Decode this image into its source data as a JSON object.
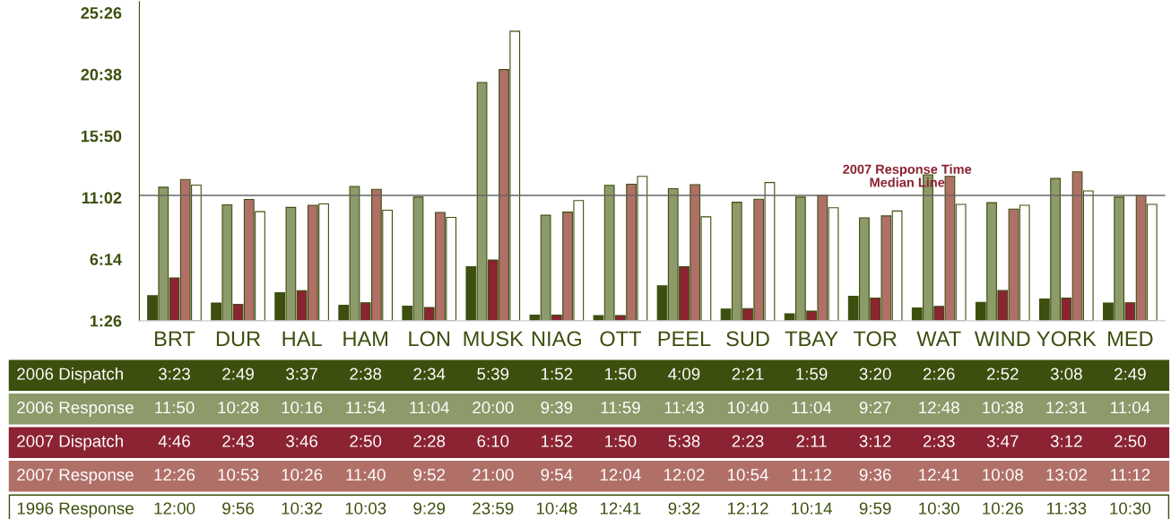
{
  "chart_data": {
    "type": "bar",
    "categories": [
      "BRT",
      "DUR",
      "HAL",
      "HAM",
      "LON",
      "MUSK",
      "NIAG",
      "OTT",
      "PEEL",
      "SUD",
      "TBAY",
      "TOR",
      "WAT",
      "WIND",
      "YORK",
      "MED"
    ],
    "series": [
      {
        "name": "2006 Dispatch",
        "color": "#3d4f0e",
        "values": [
          3.3833,
          2.8167,
          3.6167,
          2.6333,
          2.5667,
          5.65,
          1.8667,
          1.8333,
          4.15,
          2.35,
          1.9833,
          3.3333,
          2.4333,
          2.8667,
          3.1333,
          2.8167
        ],
        "value_labels": [
          "3:23",
          "2:49",
          "3:37",
          "2:38",
          "2:34",
          "5:39",
          "1:52",
          "1:50",
          "4:09",
          "2:21",
          "1:59",
          "3:20",
          "2:26",
          "2:52",
          "3:08",
          "2:49"
        ]
      },
      {
        "name": "2006 Response",
        "color": "#8d9a6a",
        "values": [
          11.8333,
          10.4667,
          10.2667,
          11.9,
          11.0667,
          20,
          9.65,
          11.9833,
          11.7167,
          10.6667,
          11.0667,
          9.45,
          12.8,
          10.6333,
          12.5167,
          11.0667
        ],
        "value_labels": [
          "11:50",
          "10:28",
          "10:16",
          "11:54",
          "11:04",
          "20:00",
          "9:39",
          "11:59",
          "11:43",
          "10:40",
          "11:04",
          "9:27",
          "12:48",
          "10:38",
          "12:31",
          "11:04"
        ]
      },
      {
        "name": "2007 Dispatch",
        "color": "#8b2332",
        "values": [
          4.7667,
          2.7167,
          3.7667,
          2.8333,
          2.4667,
          6.1667,
          1.8667,
          1.8333,
          5.6333,
          2.3833,
          2.1833,
          3.2,
          2.55,
          3.7833,
          3.2,
          2.8333
        ],
        "value_labels": [
          "4:46",
          "2:43",
          "3:46",
          "2:50",
          "2:28",
          "6:10",
          "1:52",
          "1:50",
          "5:38",
          "2:23",
          "2:11",
          "3:12",
          "2:33",
          "3:47",
          "3:12",
          "2:50"
        ]
      },
      {
        "name": "2007 Response",
        "color": "#b07068",
        "values": [
          12.4333,
          10.8833,
          10.4333,
          11.6667,
          9.8667,
          21,
          9.9,
          12.0667,
          12.0333,
          10.9,
          11.2,
          9.6,
          12.6833,
          10.1333,
          13.0333,
          11.2
        ],
        "value_labels": [
          "12:26",
          "10:53",
          "10:26",
          "11:40",
          "9:52",
          "21:00",
          "9:54",
          "12:04",
          "12:02",
          "10:54",
          "11:12",
          "9:36",
          "12:41",
          "10:08",
          "13:02",
          "11:12"
        ]
      },
      {
        "name": "1996 Response",
        "color": "#ffffff",
        "values": [
          12,
          9.9333,
          10.5333,
          10.05,
          9.4833,
          23.9833,
          10.8,
          12.6833,
          9.5333,
          12.2,
          10.2333,
          9.9833,
          10.5,
          10.4333,
          11.55,
          10.5
        ],
        "value_labels": [
          "12:00",
          "9:56",
          "10:32",
          "10:03",
          "9:29",
          "23:59",
          "10:48",
          "12:41",
          "9:32",
          "12:12",
          "10:14",
          "9:59",
          "10:30",
          "10:26",
          "11:33",
          "10:30"
        ]
      }
    ],
    "ylim": [
      1.4333,
      26.3
    ],
    "yticks": [
      {
        "value": 1.4333,
        "label": "1:26"
      },
      {
        "value": 6.2333,
        "label": "6:14"
      },
      {
        "value": 11.0333,
        "label": "11:02"
      },
      {
        "value": 15.8333,
        "label": "15:50"
      },
      {
        "value": 20.6333,
        "label": "20:38"
      },
      {
        "value": 25.4333,
        "label": "25:26"
      }
    ],
    "ref_lines": [
      {
        "axis": "y",
        "value": 11.2,
        "label": "2007 Response Time\nMedian Line",
        "color": "#666666"
      }
    ],
    "grid": false,
    "legend": false
  }
}
